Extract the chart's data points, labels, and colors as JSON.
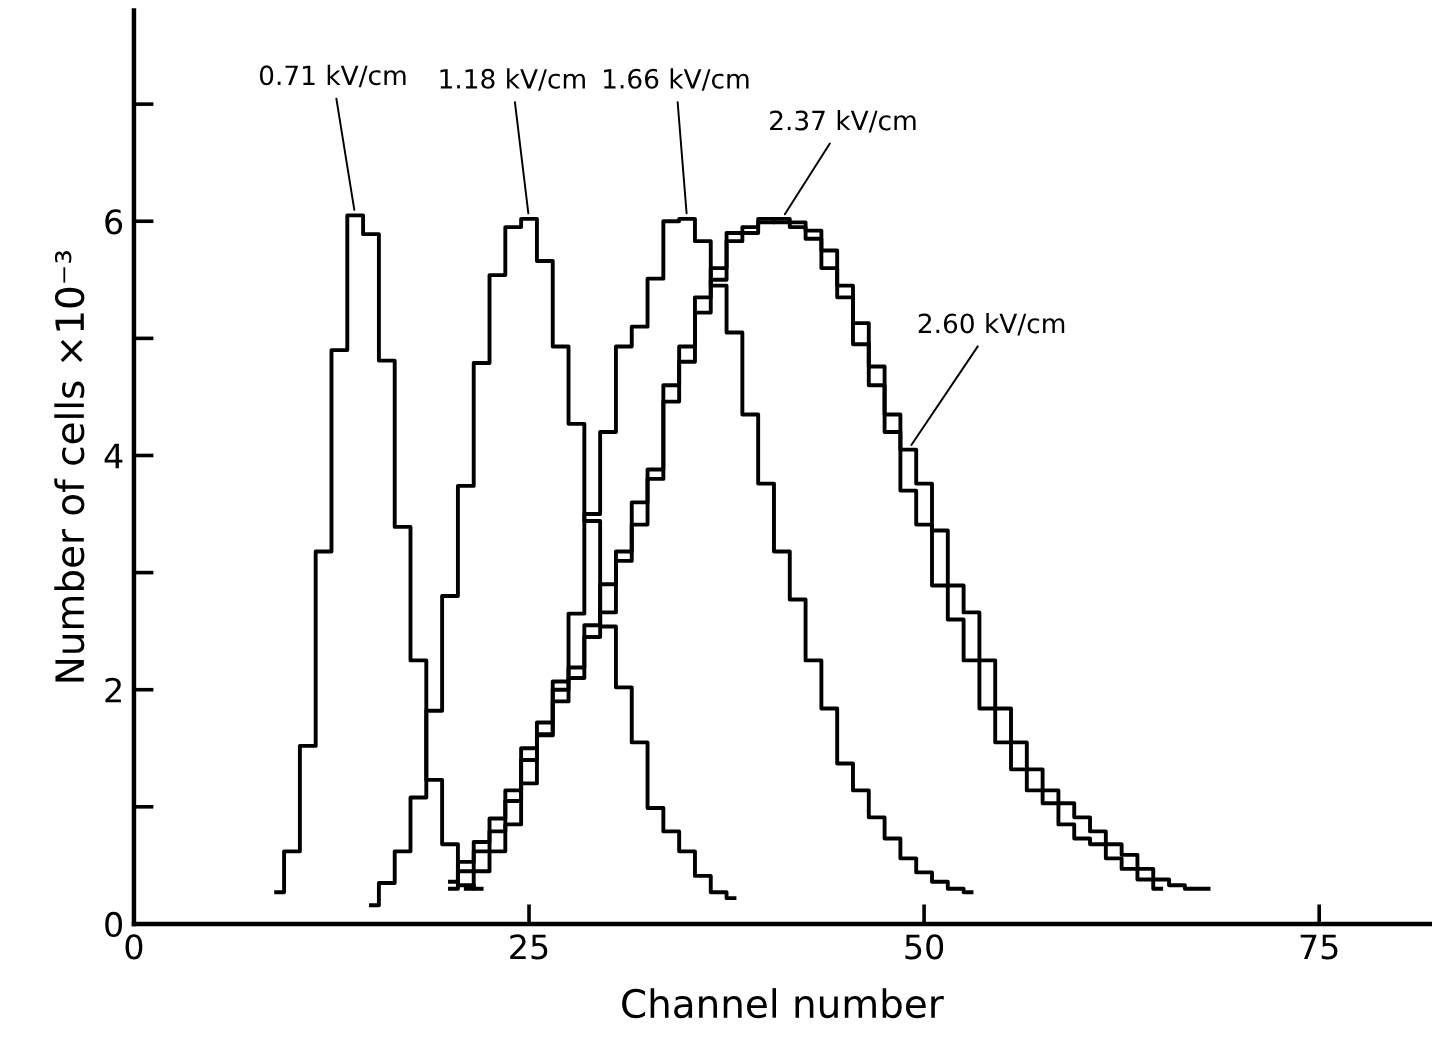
{
  "chart_data": {
    "type": "step",
    "xlabel": "Channel number",
    "ylabel": "Number of cells ×10⁻³",
    "xlim": [
      0,
      82
    ],
    "ylim": [
      0,
      7.8
    ],
    "xticks": [
      0,
      25,
      50,
      75
    ],
    "yticks": [
      0,
      {
        "value": 1,
        "label": null
      },
      2,
      {
        "value": 3,
        "label": null
      },
      4,
      {
        "value": 5,
        "label": null
      },
      6,
      {
        "value": 7,
        "label": null
      }
    ],
    "grid": false,
    "legend": false,
    "marker": "none",
    "line_style": "solid",
    "series": [
      {
        "name": "0.71 kV/cm",
        "color": "#000000",
        "x": [
          9,
          10,
          11,
          12,
          13,
          14,
          15,
          16,
          17,
          18,
          19,
          20,
          21,
          22
        ],
        "values": [
          0.27,
          0.62,
          1.52,
          3.18,
          4.9,
          6.05,
          5.89,
          4.81,
          3.39,
          2.25,
          1.23,
          0.68,
          0.33,
          0.3
        ]
      },
      {
        "name": "1.18 kV/cm",
        "color": "#000000",
        "x": [
          15,
          16,
          17,
          18,
          19,
          20,
          21,
          22,
          23,
          24,
          25,
          26,
          27,
          28,
          29,
          30,
          31,
          32,
          33,
          34,
          35,
          36,
          37,
          38
        ],
        "values": [
          0.16,
          0.35,
          0.62,
          1.08,
          1.82,
          2.8,
          3.74,
          4.79,
          5.54,
          5.95,
          6.02,
          5.66,
          4.93,
          4.27,
          3.44,
          2.54,
          2.02,
          1.55,
          0.99,
          0.79,
          0.62,
          0.41,
          0.27,
          0.22
        ]
      },
      {
        "name": "1.66 kV/cm",
        "color": "#000000",
        "x": [
          21,
          22,
          23,
          24,
          25,
          26,
          27,
          28,
          29,
          30,
          31,
          32,
          33,
          34,
          35,
          36,
          37,
          38,
          39,
          40,
          41,
          42,
          43,
          44,
          45,
          46,
          47,
          48,
          49,
          50,
          51,
          52,
          53
        ],
        "values": [
          0.3,
          0.45,
          0.62,
          0.85,
          1.2,
          1.61,
          2.07,
          2.65,
          3.5,
          4.2,
          4.93,
          5.1,
          5.51,
          6.0,
          6.02,
          5.83,
          5.45,
          5.05,
          4.35,
          3.76,
          3.18,
          2.77,
          2.25,
          1.84,
          1.37,
          1.14,
          0.91,
          0.73,
          0.56,
          0.44,
          0.36,
          0.3,
          0.27
        ]
      },
      {
        "name": "2.37 kV/cm",
        "color": "#000000",
        "x": [
          20,
          21,
          22,
          23,
          24,
          25,
          26,
          27,
          28,
          29,
          30,
          31,
          32,
          33,
          34,
          35,
          36,
          37,
          38,
          39,
          40,
          41,
          42,
          43,
          44,
          45,
          46,
          47,
          48,
          49,
          50,
          51,
          52,
          53,
          54,
          55,
          56,
          57,
          58,
          59,
          60,
          61,
          62,
          63,
          64,
          65
        ],
        "values": [
          0.36,
          0.53,
          0.62,
          0.79,
          1.14,
          1.4,
          1.72,
          1.9,
          2.19,
          2.45,
          2.66,
          3.18,
          3.41,
          3.88,
          4.46,
          4.93,
          5.22,
          5.6,
          5.83,
          5.95,
          5.99,
          6.02,
          5.99,
          5.92,
          5.75,
          5.45,
          5.13,
          4.76,
          4.35,
          3.7,
          3.41,
          2.89,
          2.6,
          2.25,
          1.84,
          1.55,
          1.32,
          1.14,
          1.03,
          0.85,
          0.73,
          0.68,
          0.56,
          0.47,
          0.38,
          0.3
        ]
      },
      {
        "name": "2.60 kV/cm",
        "color": "#000000",
        "x": [
          20,
          21,
          22,
          23,
          24,
          25,
          26,
          27,
          28,
          29,
          30,
          31,
          32,
          33,
          34,
          35,
          36,
          37,
          38,
          39,
          40,
          41,
          42,
          43,
          44,
          45,
          46,
          47,
          48,
          49,
          50,
          51,
          52,
          53,
          54,
          55,
          56,
          57,
          58,
          59,
          60,
          61,
          62,
          63,
          64,
          65,
          66,
          67,
          68
        ],
        "values": [
          0.3,
          0.45,
          0.7,
          0.9,
          1.05,
          1.5,
          1.62,
          2.0,
          2.1,
          2.55,
          2.9,
          3.1,
          3.6,
          3.8,
          4.6,
          4.8,
          5.35,
          5.5,
          5.9,
          5.9,
          6.02,
          5.99,
          5.95,
          5.85,
          5.6,
          5.35,
          4.95,
          4.6,
          4.2,
          4.05,
          3.76,
          3.36,
          2.89,
          2.66,
          2.25,
          1.84,
          1.55,
          1.32,
          1.14,
          1.03,
          0.91,
          0.79,
          0.68,
          0.59,
          0.47,
          0.38,
          0.33,
          0.3,
          0.3
        ]
      }
    ]
  }
}
